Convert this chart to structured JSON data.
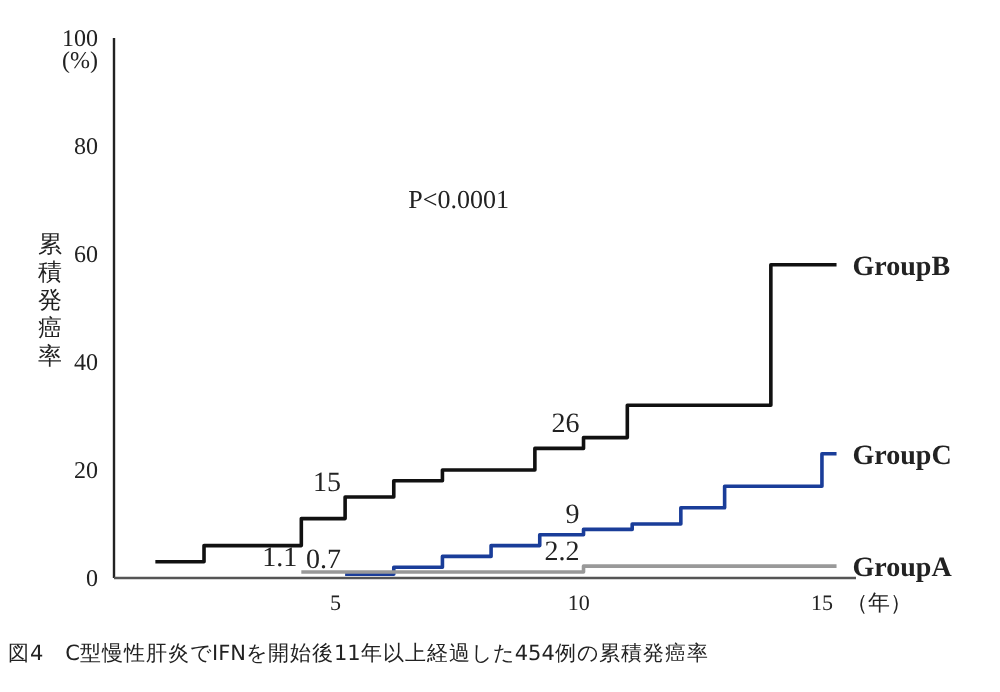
{
  "chart_data": {
    "type": "step",
    "title": "図4　C型慢性肝炎でIFNを開始後11年以上経過した454例の累積発癌率",
    "ylabel": "累積発癌率",
    "xlabel": "（年）",
    "xlim": [
      0.45,
      15.7
    ],
    "xticks": [
      5,
      10,
      15
    ],
    "ylim": [
      0,
      100
    ],
    "yticks": [
      0,
      20,
      40,
      60,
      80,
      {
        "value": 100,
        "label": "100"
      }
    ],
    "grid": false,
    "legend": false,
    "marker": "none",
    "line_style": "solid",
    "annotations": [
      "(%)",
      "P<0.0001",
      {
        "text": "15",
        "x": 5.2,
        "y": 15
      },
      {
        "text": "26",
        "x": 10.1,
        "y": 26
      },
      {
        "text": "9",
        "x": 10.1,
        "y": 9
      },
      {
        "text": "1.1",
        "x": 4.3,
        "y": 1.1
      },
      {
        "text": "0.7",
        "x": 5.2,
        "y": 0.7
      },
      {
        "text": "2.2",
        "x": 10.1,
        "y": 2.2
      }
    ],
    "series": [
      {
        "name": "GroupB",
        "color": "#111111",
        "x": [
          1.3,
          2.3,
          4.3,
          5.2,
          6.2,
          7.2,
          9.1,
          10.1,
          11.0,
          13.95,
          15.3
        ],
        "values": [
          3,
          6,
          11,
          15,
          18,
          20,
          24,
          26,
          32,
          58,
          58
        ]
      },
      {
        "name": "GroupC",
        "color": "#1a3d99",
        "x": [
          5.2,
          6.2,
          7.2,
          8.2,
          9.2,
          10.1,
          11.1,
          12.1,
          13.0,
          15.0,
          15.3
        ],
        "values": [
          0.7,
          2,
          4,
          6,
          8,
          9,
          10,
          13,
          17,
          23,
          23
        ]
      },
      {
        "name": "GroupA",
        "color": "#999999",
        "x": [
          4.3,
          10.1,
          15.3
        ],
        "values": [
          1.1,
          2.2,
          2.2
        ]
      }
    ]
  }
}
